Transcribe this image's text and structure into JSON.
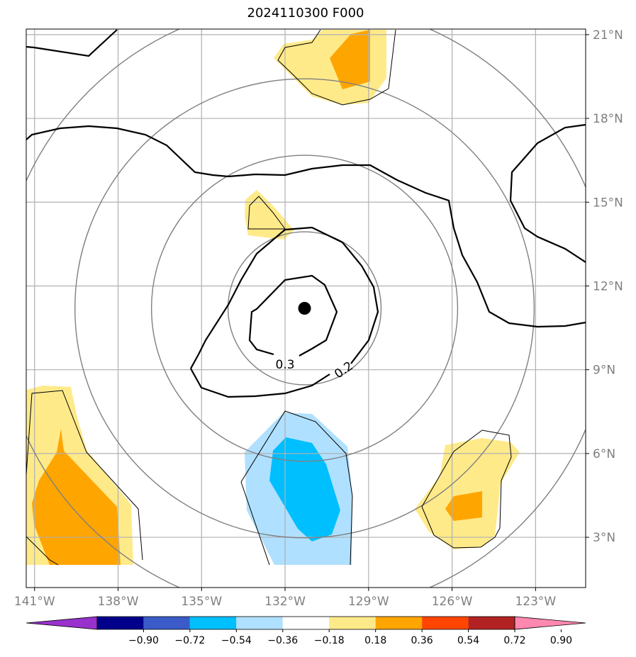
{
  "title": "2024110300 F000",
  "map": {
    "lon_range": [
      -141.3,
      -121.2
    ],
    "lat_range": [
      1.2,
      21.2
    ],
    "lon_ticks": [
      {
        "value": -141,
        "label": "141°W"
      },
      {
        "value": -138,
        "label": "138°W"
      },
      {
        "value": -135,
        "label": "135°W"
      },
      {
        "value": -132,
        "label": "132°W"
      },
      {
        "value": -129,
        "label": "129°W"
      },
      {
        "value": -126,
        "label": "126°W"
      },
      {
        "value": -123,
        "label": "123°W"
      }
    ],
    "lat_ticks": [
      {
        "value": 3,
        "label": "3°N"
      },
      {
        "value": 6,
        "label": "6°N"
      },
      {
        "value": 9,
        "label": "9°N"
      },
      {
        "value": 12,
        "label": "12°N"
      },
      {
        "value": 15,
        "label": "15°N"
      },
      {
        "value": 18,
        "label": "18°N"
      },
      {
        "value": 21,
        "label": "21°N"
      }
    ],
    "grid": true,
    "center_marker": {
      "lon": -131.3,
      "lat": 11.2
    },
    "range_rings": {
      "center_lon": -131.3,
      "center_lat": 11.2,
      "radii_deg": [
        2.75,
        5.5,
        8.25,
        11
      ]
    },
    "contours": [
      {
        "label": "0.3",
        "label_at": {
          "lon": -132.0,
          "lat": 9.2
        }
      },
      {
        "label": "0.2",
        "label_at": {
          "lon": -129.9,
          "lat": 9.0
        }
      }
    ]
  },
  "colorbar": {
    "colors": [
      "#9932cc",
      "#00008b",
      "#3a5bc8",
      "#00bfff",
      "#b0e0ff",
      "#ffffff",
      "#ffea8a",
      "#ffa500",
      "#ff4500",
      "#b22222",
      "#ff88b0"
    ],
    "labels": [
      "−0.90",
      "−0.72",
      "−0.54",
      "−0.36",
      "−0.18",
      "0.18",
      "0.36",
      "0.54",
      "0.72",
      "0.90"
    ]
  }
}
